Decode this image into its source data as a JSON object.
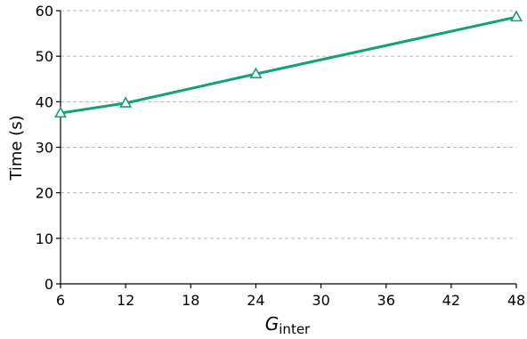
{
  "chart_data": {
    "type": "line",
    "title": "",
    "xlabel": {
      "main": "G",
      "subscript": "inter"
    },
    "ylabel": "Time (s)",
    "xlim": [
      6,
      48
    ],
    "ylim": [
      0,
      60
    ],
    "xticks": [
      6,
      12,
      18,
      24,
      30,
      36,
      42,
      48
    ],
    "yticks": [
      0,
      10,
      20,
      30,
      40,
      50,
      60
    ],
    "grid": {
      "y": true,
      "x": false,
      "style": "dashed"
    },
    "series": [
      {
        "color": "#13a07a",
        "marker": "triangle-open",
        "x": [
          6,
          12,
          24,
          48
        ],
        "y": [
          37.5,
          39.7,
          46.1,
          58.6
        ]
      }
    ]
  }
}
